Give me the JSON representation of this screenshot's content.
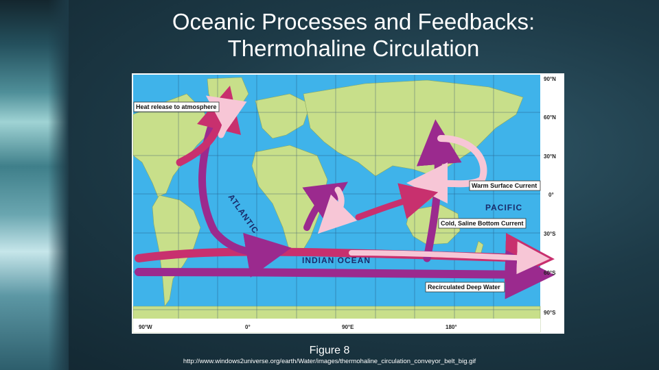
{
  "title": {
    "line1": "Oceanic Processes and Feedbacks:",
    "line2": "Thermohaline Circulation"
  },
  "figure": {
    "caption": "Figure 8",
    "source_url": "http://www.windows2universe.org/earth/Water/images/thermohaline_circulation_conveyor_belt_big.gif"
  },
  "map": {
    "labels": {
      "heat_release": "Heat release to atmosphere",
      "warm_surface": "Warm Surface Current",
      "cold_bottom": "Cold, Saline Bottom Current",
      "recirculated": "Recirculated Deep Water"
    },
    "oceans": {
      "atlantic": "ATLANTIC",
      "indian": "INDIAN OCEAN",
      "pacific": "PACIFIC"
    },
    "lat_ticks": [
      "90°N",
      "60°N",
      "30°N",
      "0°",
      "30°S",
      "60°S",
      "90°S"
    ],
    "lon_ticks": [
      "90°W",
      "0°",
      "90°E",
      "180°"
    ],
    "colors": {
      "ocean": "#3fb3ea",
      "land": "#c8df8a",
      "warm_current": "#f7c6d6",
      "cold_current": "#9b2a8e",
      "deep_current": "#c8306e"
    }
  }
}
